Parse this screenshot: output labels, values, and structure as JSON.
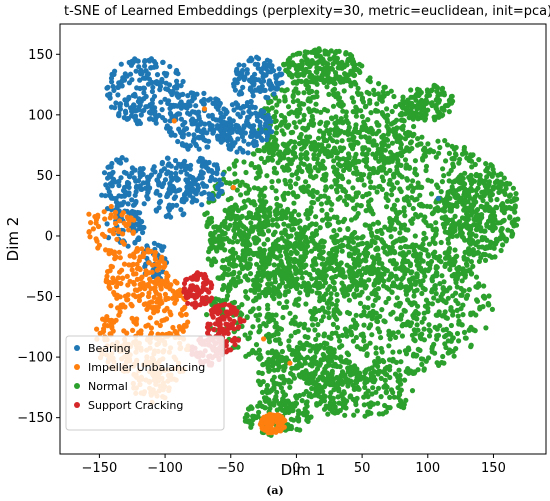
{
  "caption": "(a)",
  "chart_data": {
    "type": "scatter",
    "title": "t-SNE of Learned Embeddings (perplexity=30, metric=euclidean, init=pca)",
    "xlabel": "Dim 1",
    "ylabel": "Dim 2",
    "xlim": [
      -180,
      190
    ],
    "ylim": [
      -180,
      175
    ],
    "xticks": [
      -150,
      -100,
      -50,
      0,
      50,
      100,
      150
    ],
    "yticks": [
      -150,
      -100,
      -50,
      0,
      50,
      100,
      150
    ],
    "grid": false,
    "legend_position": "lower-left",
    "series": [
      {
        "name": "Bearing",
        "color": "#1f77b4",
        "regions": [
          {
            "cx": -115,
            "cy": 120,
            "rx": 30,
            "ry": 28,
            "n": 200
          },
          {
            "cx": -75,
            "cy": 95,
            "rx": 25,
            "ry": 25,
            "n": 160
          },
          {
            "cx": -40,
            "cy": 90,
            "rx": 22,
            "ry": 22,
            "n": 150
          },
          {
            "cx": -30,
            "cy": 130,
            "rx": 20,
            "ry": 18,
            "n": 110
          },
          {
            "cx": -130,
            "cy": 40,
            "rx": 20,
            "ry": 25,
            "n": 120
          },
          {
            "cx": -95,
            "cy": 40,
            "rx": 20,
            "ry": 25,
            "n": 110
          },
          {
            "cx": -70,
            "cy": 45,
            "rx": 15,
            "ry": 20,
            "n": 80
          },
          {
            "cx": -130,
            "cy": 5,
            "rx": 15,
            "ry": 15,
            "n": 50
          },
          {
            "cx": -108,
            "cy": -20,
            "rx": 10,
            "ry": 18,
            "n": 40
          }
        ],
        "points": [
          [
            -143,
            -102
          ],
          [
            108,
            31
          ],
          [
            -105,
            -35
          ],
          [
            -60,
            55
          ]
        ]
      },
      {
        "name": "Impeller Unbalancing",
        "color": "#ff7f0e",
        "regions": [
          {
            "cx": -140,
            "cy": 5,
            "rx": 18,
            "ry": 20,
            "n": 60
          },
          {
            "cx": -120,
            "cy": -35,
            "rx": 25,
            "ry": 25,
            "n": 140
          },
          {
            "cx": -135,
            "cy": -85,
            "rx": 18,
            "ry": 30,
            "n": 110
          },
          {
            "cx": -98,
            "cy": -80,
            "rx": 18,
            "ry": 45,
            "n": 150
          },
          {
            "cx": -110,
            "cy": -120,
            "rx": 15,
            "ry": 18,
            "n": 60
          },
          {
            "cx": -18,
            "cy": -155,
            "rx": 10,
            "ry": 8,
            "n": 90
          }
        ],
        "points": [
          [
            -70,
            105
          ],
          [
            -48,
            40
          ],
          [
            -93,
            95
          ],
          [
            -5,
            -105
          ],
          [
            -25,
            -85
          ],
          [
            -158,
            18
          ]
        ]
      },
      {
        "name": "Normal",
        "color": "#2ca02c",
        "regions": [
          {
            "cx": 50,
            "cy": 20,
            "rx": 120,
            "ry": 70,
            "n": 1300
          },
          {
            "cx": 40,
            "cy": -60,
            "rx": 110,
            "ry": 60,
            "n": 1000
          },
          {
            "cx": 30,
            "cy": 90,
            "rx": 60,
            "ry": 45,
            "n": 450
          },
          {
            "cx": 20,
            "cy": 140,
            "rx": 30,
            "ry": 15,
            "n": 180
          },
          {
            "cx": 100,
            "cy": 110,
            "rx": 20,
            "ry": 15,
            "n": 120
          },
          {
            "cx": -30,
            "cy": -10,
            "rx": 40,
            "ry": 40,
            "n": 300
          },
          {
            "cx": 10,
            "cy": -120,
            "rx": 40,
            "ry": 30,
            "n": 250
          },
          {
            "cx": 50,
            "cy": -130,
            "rx": 40,
            "ry": 20,
            "n": 150
          },
          {
            "cx": -15,
            "cy": -150,
            "rx": 25,
            "ry": 15,
            "n": 110
          },
          {
            "cx": 140,
            "cy": 20,
            "rx": 30,
            "ry": 35,
            "n": 180
          }
        ],
        "points": []
      },
      {
        "name": "Support Cracking",
        "color": "#d62728",
        "regions": [
          {
            "cx": -75,
            "cy": -45,
            "rx": 12,
            "ry": 15,
            "n": 80
          },
          {
            "cx": -55,
            "cy": -75,
            "rx": 13,
            "ry": 22,
            "n": 110
          },
          {
            "cx": -68,
            "cy": -95,
            "rx": 12,
            "ry": 12,
            "n": 50
          }
        ],
        "points": [
          [
            -40,
            -70
          ]
        ]
      }
    ]
  }
}
